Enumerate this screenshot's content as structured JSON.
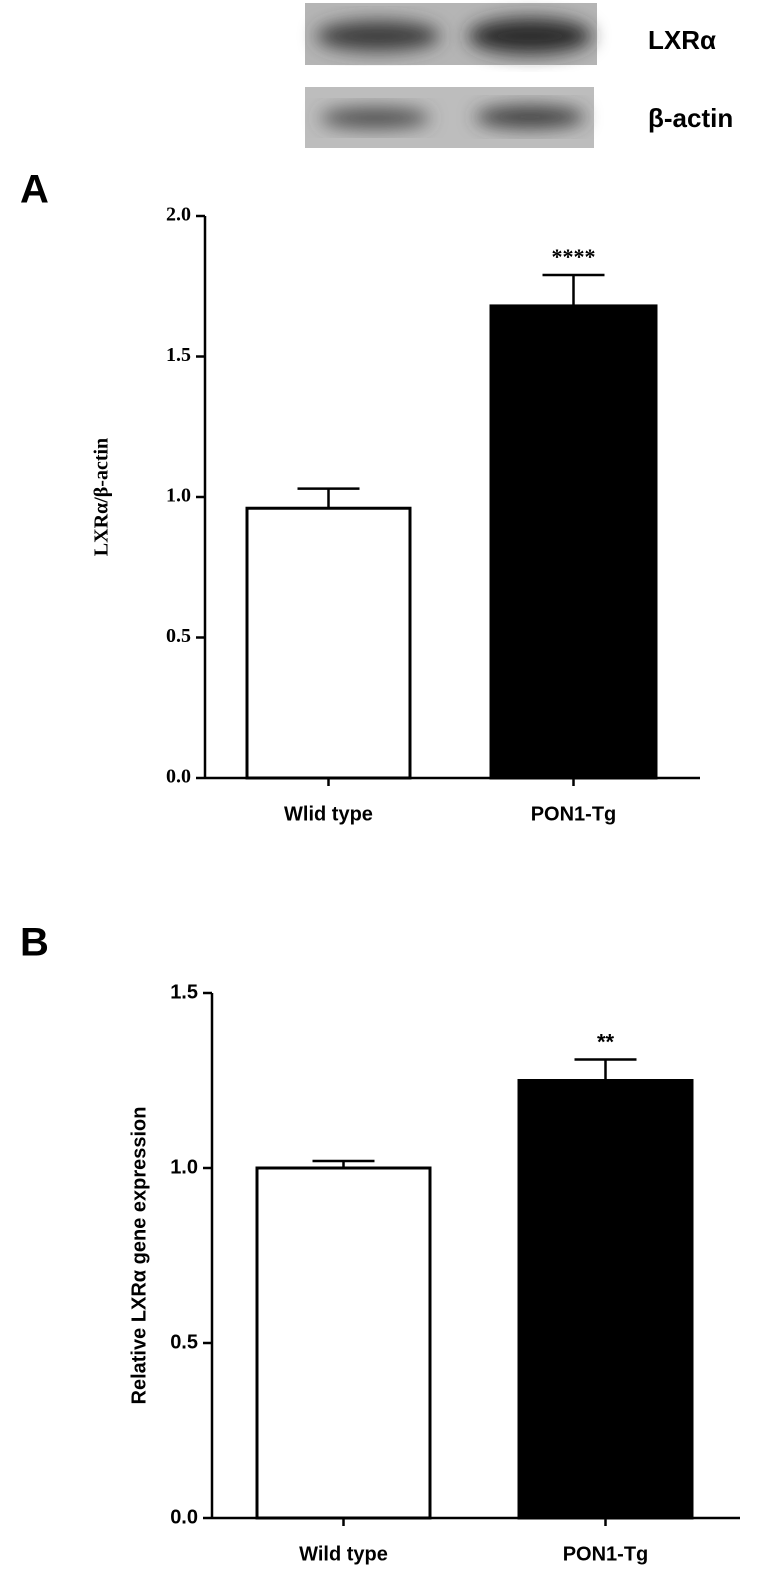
{
  "blot": {
    "labels": [
      "LXRα",
      "β-actin"
    ]
  },
  "chart_data": [
    {
      "type": "bar",
      "panel": "A",
      "ylabel": "LXRα/β-actin",
      "categories": [
        "Wlid type",
        "PON1-Tg"
      ],
      "values": [
        0.96,
        1.68
      ],
      "errors": [
        0.07,
        0.11
      ],
      "colors": [
        "#ffffff",
        "#000000"
      ],
      "annotations": [
        null,
        "****"
      ],
      "ylim": [
        0,
        2.0
      ],
      "yticks": [
        {
          "value": 0,
          "label": "0.0"
        },
        {
          "value": 0.5,
          "label": "0.5"
        },
        {
          "value": 1,
          "label": "1.0"
        },
        {
          "value": 1.5,
          "label": "1.5"
        },
        {
          "value": 2,
          "label": "2.0"
        }
      ]
    },
    {
      "type": "bar",
      "panel": "B",
      "ylabel": "Relative LXRα gene expression",
      "categories": [
        "Wild type",
        "PON1-Tg"
      ],
      "values": [
        1.0,
        1.25
      ],
      "errors": [
        0.02,
        0.06
      ],
      "colors": [
        "#ffffff",
        "#000000"
      ],
      "annotations": [
        null,
        "**"
      ],
      "ylim": [
        0,
        1.5
      ],
      "yticks": [
        {
          "value": 0,
          "label": "0.0"
        },
        {
          "value": 0.5,
          "label": "0.5"
        },
        {
          "value": 1,
          "label": "1.0"
        },
        {
          "value": 1.5,
          "label": "1.5"
        }
      ]
    }
  ]
}
